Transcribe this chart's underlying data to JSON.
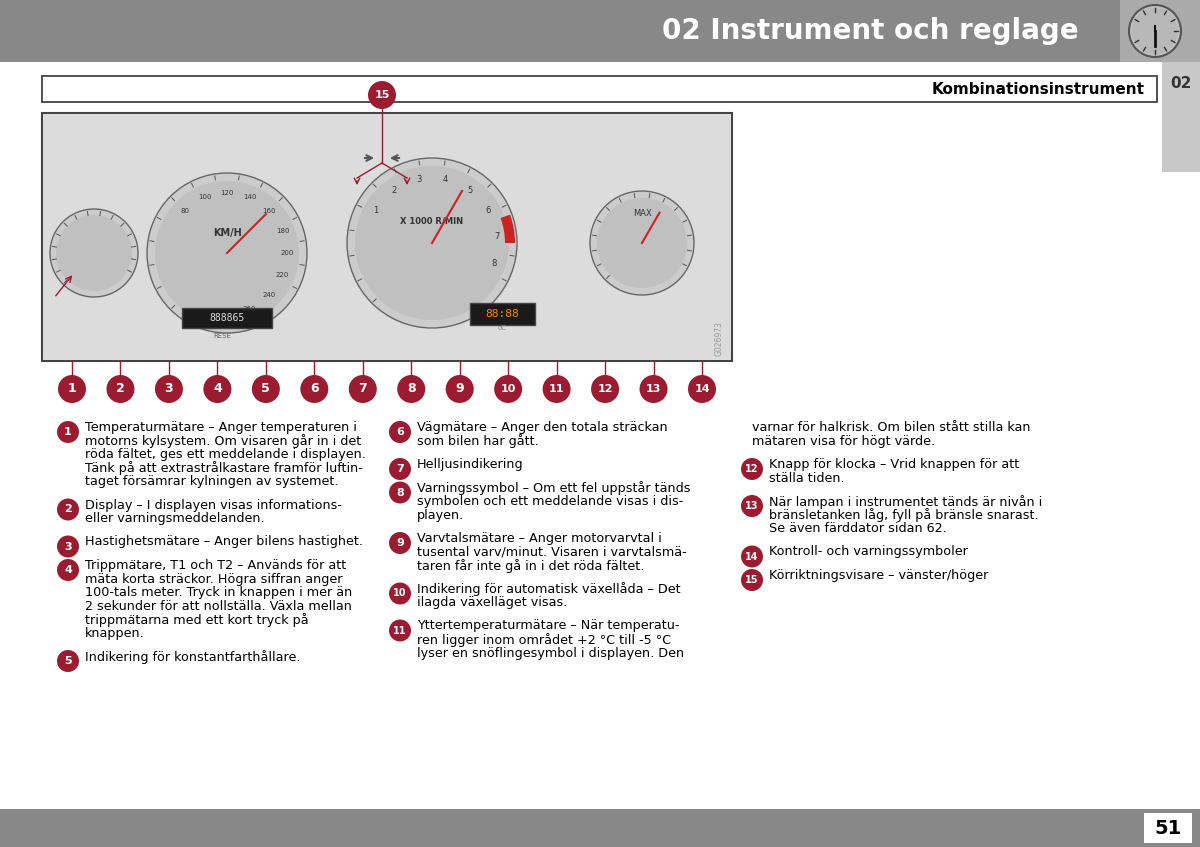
{
  "page_title": "02 Instrument och reglage",
  "section_title": "Kombinationsinstrument",
  "page_number": "51",
  "chapter_number": "02",
  "bullet_color": "#9b1c31",
  "col1_items": [
    {
      "num": "1",
      "lines": [
        "Temperaturmätare – Anger temperaturen i",
        "motorns kylsystem. Om visaren går in i det",
        "röda fältet, ges ett meddelande i displayen.",
        "Tänk på att extrastrålkastare framför luftin-",
        "taget försämrar kylningen av systemet."
      ]
    },
    {
      "num": "2",
      "lines": [
        "Display – I displayen visas informations-",
        "eller varningsmeddelanden."
      ]
    },
    {
      "num": "3",
      "lines": [
        "Hastighetsmätare – Anger bilens hastighet."
      ]
    },
    {
      "num": "4",
      "lines": [
        "Trippmätare, T1 och T2 – Används för att",
        "mäta korta sträckor. Högra siffran anger",
        "100-tals meter. Tryck in knappen i mer än",
        "2 sekunder för att nollställa. Växla mellan",
        "trippmätarna med ett kort tryck på",
        "knappen."
      ]
    },
    {
      "num": "5",
      "lines": [
        "Indikering för konstantfarthållare."
      ]
    }
  ],
  "col2_items": [
    {
      "num": "6",
      "lines": [
        "Vägmätare – Anger den totala sträckan",
        "som bilen har gått."
      ]
    },
    {
      "num": "7",
      "lines": [
        "Helljusindikering"
      ]
    },
    {
      "num": "8",
      "lines": [
        "Varningssymbol – Om ett fel uppstår tänds",
        "symbolen och ett meddelande visas i dis-",
        "playen."
      ]
    },
    {
      "num": "9",
      "lines": [
        "Varvtalsmätare – Anger motorvarvtal i",
        "tusental varv/minut. Visaren i varvtalsmä-",
        "taren får inte gå in i det röda fältet."
      ]
    },
    {
      "num": "10",
      "lines": [
        "Indikering för automatisk växellåda – Det",
        "ilagda växelläget visas."
      ]
    },
    {
      "num": "11",
      "lines": [
        "Yttertemperaturmätare – När temperatu-",
        "ren ligger inom området +2 °C till -5 °C",
        "lyser en snöflingesymbol i displayen. Den"
      ]
    }
  ],
  "col3_items": [
    {
      "num": null,
      "lines": [
        "varnar för halkrisk. Om bilen stått stilla kan",
        "mätaren visa för högt värde."
      ]
    },
    {
      "num": "12",
      "lines": [
        "Knapp för klocka – Vrid knappen för att",
        "ställa tiden."
      ]
    },
    {
      "num": "13",
      "lines": [
        "När lampan i instrumentet tänds är nivån i",
        "bränsletanken låg, fyll på bränsle snarast.",
        "Se även färddator sidan 62."
      ]
    },
    {
      "num": "14",
      "lines": [
        "Kontroll- och varningssymboler"
      ]
    },
    {
      "num": "15",
      "lines": [
        "Körriktningsvisare – vänster/höger"
      ]
    }
  ]
}
